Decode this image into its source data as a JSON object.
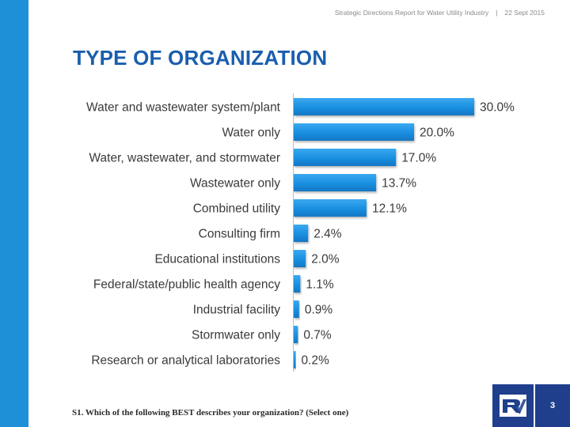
{
  "header": {
    "report": "Strategic Directions Report for Water Utility Industry",
    "separator": "|",
    "date": "22 Sept 2015"
  },
  "title": "TYPE OF ORGANIZATION",
  "colors": {
    "band": "#1e90d8",
    "bar": "#1a8fe0",
    "title": "#1a5eae",
    "logo": "#1f3f8c"
  },
  "chart_data": {
    "type": "bar",
    "orientation": "horizontal",
    "title": "TYPE OF ORGANIZATION",
    "categories": [
      "Water and wastewater system/plant",
      "Water only",
      "Water, wastewater, and stormwater",
      "Wastewater only",
      "Combined utility",
      "Consulting firm",
      "Educational institutions",
      "Federal/state/public health agency",
      "Industrial facility",
      "Stormwater only",
      "Research or analytical laboratories"
    ],
    "values": [
      30.0,
      20.0,
      17.0,
      13.7,
      12.1,
      2.4,
      2.0,
      1.1,
      0.9,
      0.7,
      0.2
    ],
    "labels": [
      "30.0%",
      "20.0%",
      "17.0%",
      "13.7%",
      "12.1%",
      "2.4%",
      "2.0%",
      "1.1%",
      "0.9%",
      "0.7%",
      "0.2%"
    ],
    "xlim": [
      0,
      30
    ],
    "xlabel": "",
    "ylabel": ""
  },
  "footnote": "S1. Which of the following BEST describes your organization? (Select one)",
  "page_number": "3",
  "logo_icon": "rv-logo-icon"
}
